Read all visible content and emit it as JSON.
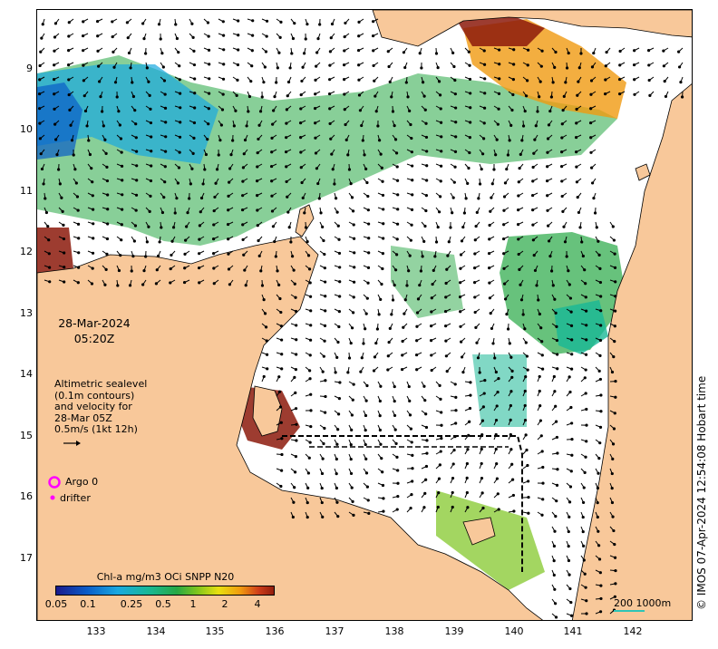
{
  "map": {
    "y_ticks": [
      "9",
      "10",
      "11",
      "12",
      "13",
      "14",
      "15",
      "16",
      "17"
    ],
    "x_ticks": [
      "133",
      "134",
      "135",
      "136",
      "137",
      "138",
      "139",
      "140",
      "141",
      "142"
    ],
    "date": "28-Mar-2024",
    "time": "05:20Z",
    "annotation_lines": [
      "Altimetric sealevel",
      "(0.1m contours)",
      "and velocity for",
      "28-Mar 05Z",
      "0.5m/s (1kt 12h)"
    ],
    "legend": {
      "argo_label": "Argo 0",
      "drifter_label": "drifter"
    },
    "colorbar": {
      "title": "Chl-a mg/m3 OCi SNPP N20",
      "ticks": [
        "0.05",
        "0.1",
        "0.25",
        "0.5",
        "1",
        "2",
        "4"
      ]
    },
    "credit": "© IMOS 07-Apr-2024 12:54:08 Hobart time",
    "scale_label": "200  1000m"
  },
  "colors": {
    "land": "#f8c89a",
    "ocean": "#ffffff",
    "arrow": "#000000",
    "argo_marker": "#ff00ff",
    "drifter_marker": "#ff00ff",
    "scale_bar": "#2ec4b6"
  }
}
